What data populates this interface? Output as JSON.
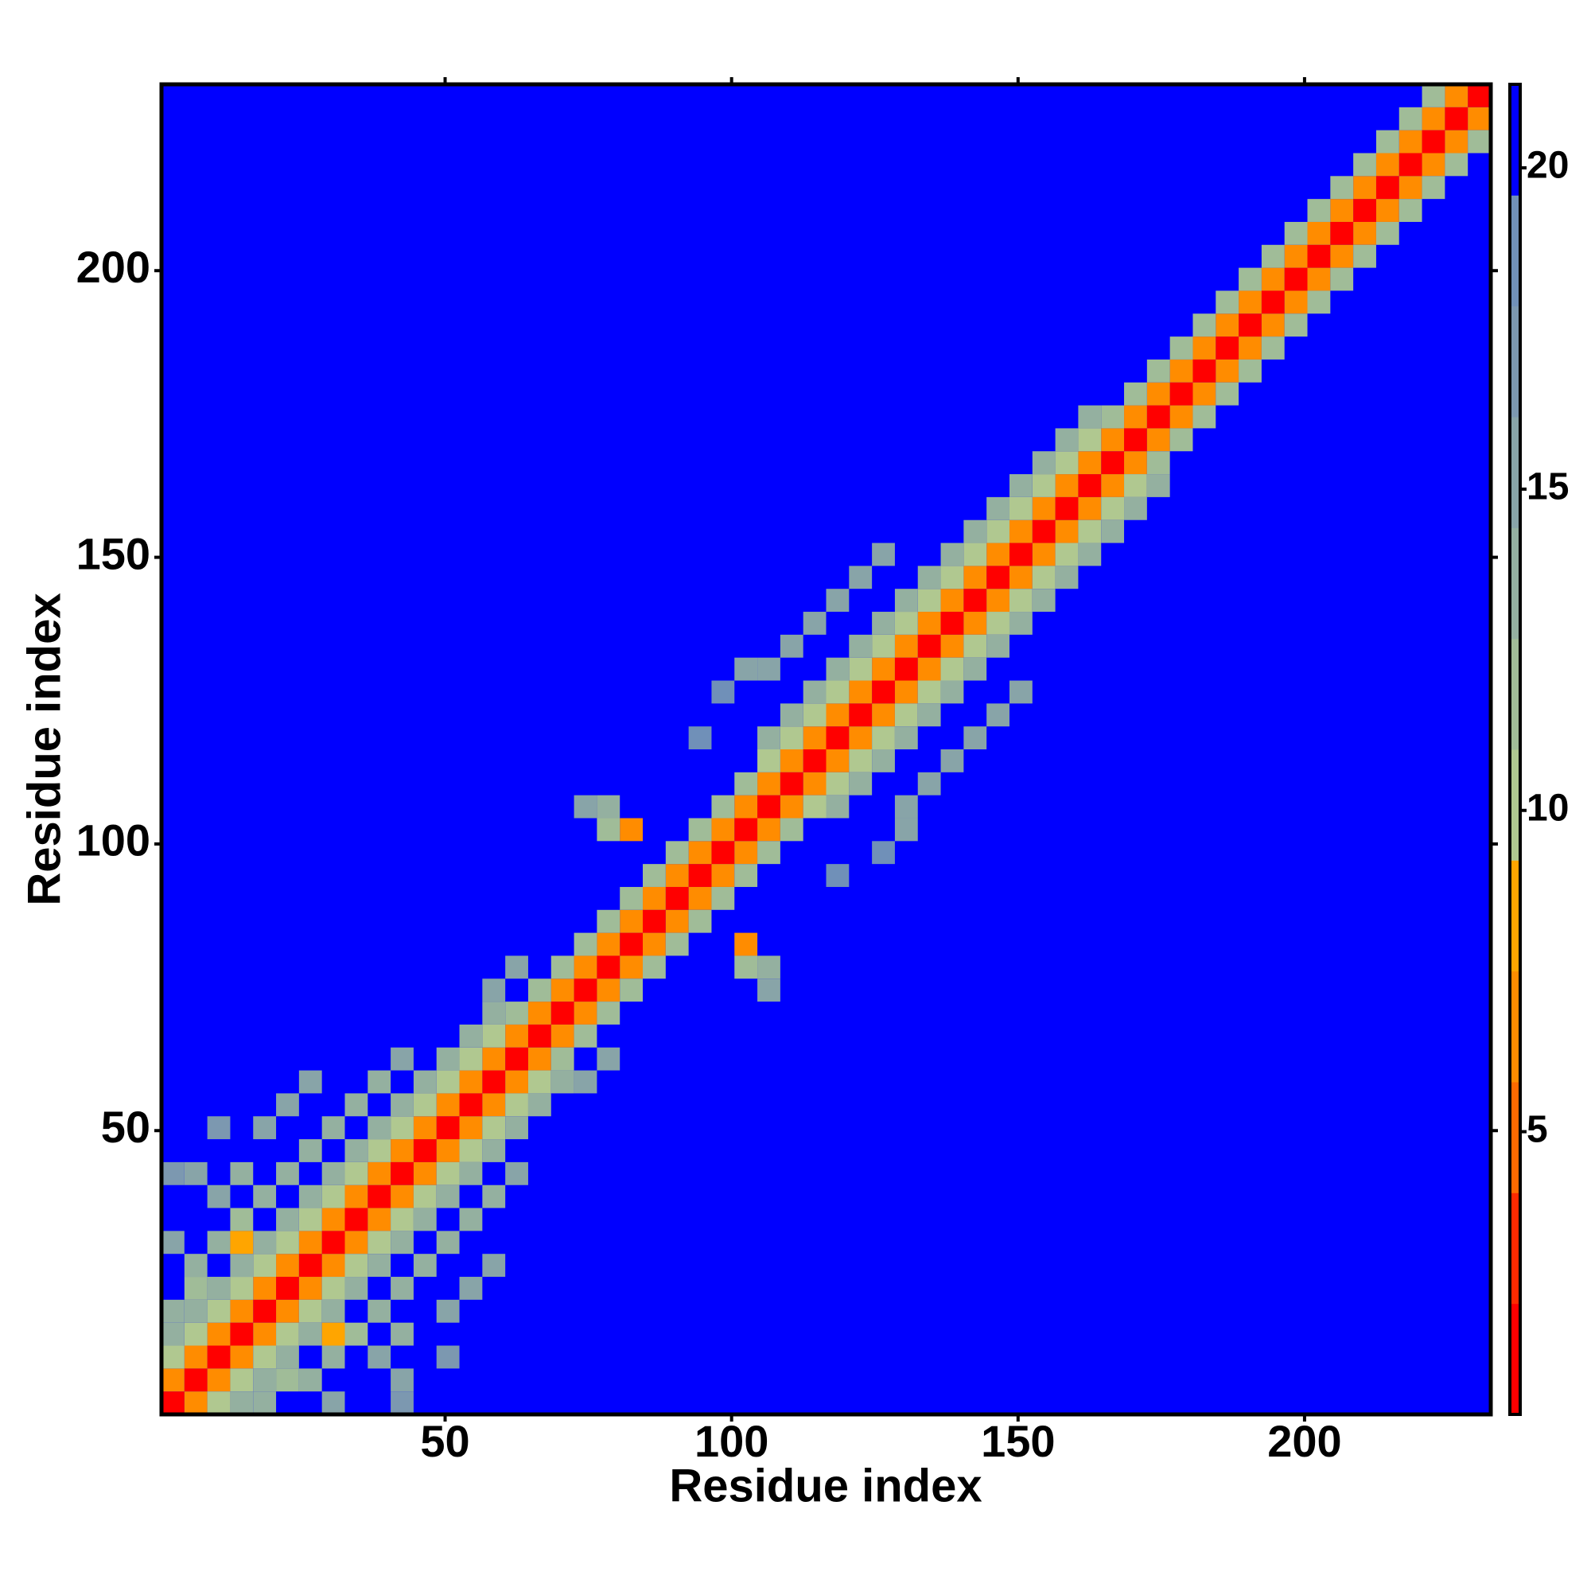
{
  "chart_data": {
    "type": "heatmap",
    "x_label": "Residue index",
    "y_label": "Residue index",
    "xlim": [
      0.5,
      232.5
    ],
    "ylim": [
      0.5,
      232.5
    ],
    "xticks": [
      50,
      100,
      150,
      200
    ],
    "yticks": [
      50,
      100,
      150,
      200
    ],
    "zlim": [
      0.6,
      21.3
    ],
    "zticks": [
      5,
      10,
      15,
      20
    ],
    "colorscale": [
      "#ff0000",
      "#ff2a00",
      "#ff6a00",
      "#ff8c00",
      "#ffa500",
      "#b0c890",
      "#a0bc98",
      "#94b0a0",
      "#88a4a8",
      "#7c98b0",
      "#7090b8",
      "#0000ff"
    ],
    "symmetric": true,
    "background": 21,
    "x": [
      2.5,
      6.5,
      10.5,
      14.5,
      18.5,
      22.5,
      26.5,
      30.5,
      34.5,
      38.5,
      42.5,
      46.5,
      50.5,
      54.5,
      58.5,
      62.5,
      66.5,
      70.5,
      74.5,
      78.5,
      82.5,
      86.5,
      90.5,
      94.5,
      98.5,
      102.5,
      106.5,
      110.5,
      114.5,
      118.5,
      122.5,
      126.5,
      130.5,
      134.5,
      138.5,
      142.5,
      146.5,
      150.5,
      154.5,
      158.5,
      162.5,
      166.5,
      170.5,
      174.5,
      178.5,
      182.5,
      186.5,
      190.5,
      194.5,
      198.5,
      202.5,
      206.5,
      210.5,
      214.5,
      218.5,
      222.5,
      226.5,
      230.5,
      2.5,
      6.5,
      10.5,
      14.5,
      18.5,
      22.5,
      26.5,
      30.5,
      34.5,
      38.5,
      42.5,
      46.5,
      50.5,
      54.5,
      58.5,
      62.5,
      66.5,
      70.5,
      74.5,
      78.5,
      82.5,
      86.5,
      90.5,
      94.5,
      98.5,
      102.5,
      106.5,
      110.5,
      114.5,
      118.5,
      122.5,
      126.5,
      130.5,
      134.5,
      138.5,
      142.5,
      146.5,
      150.5,
      154.5,
      158.5,
      162.5,
      166.5,
      170.5,
      174.5,
      178.5,
      182.5,
      186.5,
      190.5,
      194.5,
      198.5,
      202.5,
      206.5,
      210.5,
      214.5,
      218.5,
      222.5,
      226.5,
      2.5,
      6.5,
      10.5,
      14.5,
      18.5,
      22.5,
      26.5,
      30.5,
      34.5,
      38.5,
      42.5,
      46.5,
      50.5,
      54.5,
      58.5,
      62.5,
      66.5,
      70.5,
      74.5,
      78.5,
      82.5,
      86.5,
      90.5,
      94.5,
      98.5,
      102.5,
      106.5,
      110.5,
      114.5,
      118.5,
      122.5,
      126.5,
      130.5,
      134.5,
      138.5,
      142.5,
      146.5,
      150.5,
      154.5,
      158.5,
      162.5,
      166.5,
      170.5,
      174.5,
      178.5,
      182.5,
      186.5,
      190.5,
      194.5,
      198.5,
      202.5,
      206.5,
      210.5,
      214.5,
      218.5,
      222.5,
      2.5,
      6.5,
      10.5,
      14.5,
      18.5,
      22.5,
      26.5,
      30.5,
      34.5,
      38.5,
      42.5,
      46.5,
      50.5,
      54.5,
      58.5,
      106.5,
      110.5,
      114.5,
      118.5,
      122.5,
      126.5,
      130.5,
      134.5,
      138.5,
      142.5,
      146.5,
      150.5,
      154.5,
      158.5,
      162.5,
      2.5,
      6.5,
      6.5,
      10.5,
      14.5,
      18.5,
      22.5,
      26.5,
      30.5,
      34.5,
      38.5,
      10.5,
      14.5,
      2.5,
      18.5,
      22.5,
      6.5,
      26.5,
      10.5,
      2.5,
      42.5,
      62.5,
      58.5,
      82.5,
      78.5,
      78.5,
      74.5,
      102.5,
      106.5,
      110.5,
      114.5,
      118.5,
      122.5,
      126.5,
      98.5,
      94.5,
      14.5
    ],
    "y": [
      2.5,
      6.5,
      10.5,
      14.5,
      18.5,
      22.5,
      26.5,
      30.5,
      34.5,
      38.5,
      42.5,
      46.5,
      50.5,
      54.5,
      58.5,
      62.5,
      66.5,
      70.5,
      74.5,
      78.5,
      82.5,
      86.5,
      90.5,
      94.5,
      98.5,
      102.5,
      106.5,
      110.5,
      114.5,
      118.5,
      122.5,
      126.5,
      130.5,
      134.5,
      138.5,
      142.5,
      146.5,
      150.5,
      154.5,
      158.5,
      162.5,
      166.5,
      170.5,
      174.5,
      178.5,
      182.5,
      186.5,
      190.5,
      194.5,
      198.5,
      202.5,
      206.5,
      210.5,
      214.5,
      218.5,
      222.5,
      226.5,
      230.5,
      6.5,
      10.5,
      14.5,
      18.5,
      22.5,
      26.5,
      30.5,
      34.5,
      38.5,
      42.5,
      46.5,
      50.5,
      54.5,
      58.5,
      62.5,
      66.5,
      70.5,
      74.5,
      78.5,
      82.5,
      86.5,
      90.5,
      94.5,
      98.5,
      102.5,
      106.5,
      110.5,
      114.5,
      118.5,
      122.5,
      126.5,
      130.5,
      134.5,
      138.5,
      142.5,
      146.5,
      150.5,
      154.5,
      158.5,
      162.5,
      166.5,
      170.5,
      174.5,
      178.5,
      182.5,
      186.5,
      190.5,
      194.5,
      198.5,
      202.5,
      206.5,
      210.5,
      214.5,
      218.5,
      222.5,
      226.5,
      230.5,
      10.5,
      14.5,
      18.5,
      22.5,
      26.5,
      30.5,
      34.5,
      38.5,
      42.5,
      46.5,
      50.5,
      54.5,
      58.5,
      62.5,
      66.5,
      70.5,
      74.5,
      78.5,
      82.5,
      86.5,
      90.5,
      94.5,
      98.5,
      102.5,
      106.5,
      110.5,
      114.5,
      118.5,
      122.5,
      126.5,
      130.5,
      134.5,
      138.5,
      142.5,
      146.5,
      150.5,
      154.5,
      158.5,
      162.5,
      166.5,
      170.5,
      174.5,
      178.5,
      182.5,
      186.5,
      190.5,
      194.5,
      198.5,
      202.5,
      206.5,
      210.5,
      214.5,
      218.5,
      222.5,
      226.5,
      230.5,
      14.5,
      18.5,
      22.5,
      26.5,
      30.5,
      34.5,
      38.5,
      42.5,
      46.5,
      50.5,
      54.5,
      58.5,
      62.5,
      66.5,
      70.5,
      118.5,
      122.5,
      126.5,
      130.5,
      134.5,
      138.5,
      142.5,
      146.5,
      150.5,
      154.5,
      158.5,
      162.5,
      166.5,
      170.5,
      174.5,
      18.5,
      22.5,
      26.5,
      30.5,
      34.5,
      38.5,
      42.5,
      46.5,
      50.5,
      54.5,
      58.5,
      38.5,
      42.5,
      30.5,
      50.5,
      54.5,
      42.5,
      58.5,
      50.5,
      42.5,
      62.5,
      78.5,
      74.5,
      102.5,
      102.5,
      106.5,
      106.5,
      130.5,
      130.5,
      134.5,
      138.5,
      142.5,
      146.5,
      150.5,
      126.5,
      118.5,
      30.5
    ],
    "z": [
      2,
      2,
      2,
      2,
      2,
      2,
      2,
      2,
      2,
      2,
      2,
      2,
      2,
      2,
      2,
      2,
      2,
      2,
      2,
      2,
      2,
      2,
      2,
      2,
      2,
      2,
      2,
      2,
      2,
      2,
      2,
      2,
      2,
      2,
      2,
      2,
      2,
      2,
      2,
      2,
      2,
      2,
      2,
      2,
      2,
      2,
      2,
      2,
      2,
      2,
      2,
      2,
      2,
      2,
      2,
      2,
      2,
      2,
      6,
      6,
      6,
      6,
      6,
      6,
      6,
      6,
      6,
      6,
      6,
      6,
      6,
      6,
      6,
      6,
      6,
      6,
      6,
      6,
      6,
      6,
      6,
      6,
      6,
      6,
      6,
      6,
      6,
      6,
      6,
      6,
      6,
      6,
      6,
      6,
      6,
      6,
      6,
      6,
      6,
      6,
      6,
      6,
      6,
      6,
      6,
      6,
      6,
      6,
      6,
      6,
      6,
      6,
      6,
      6,
      6,
      10,
      10,
      10,
      10,
      10,
      10,
      10,
      10,
      10,
      10,
      10,
      10,
      10,
      10,
      10,
      12,
      12,
      12,
      12,
      12,
      12,
      12,
      12,
      12,
      12,
      12,
      10,
      10,
      10,
      10,
      10,
      10,
      10,
      10,
      10,
      10,
      10,
      10,
      10,
      10,
      10,
      12,
      12,
      12,
      12,
      12,
      12,
      12,
      12,
      12,
      12,
      12,
      12,
      12,
      12,
      12,
      13,
      13,
      13,
      13,
      13,
      13,
      13,
      13,
      13,
      13,
      13,
      13,
      13,
      13,
      13,
      14,
      14,
      14,
      14,
      14,
      14,
      14,
      14,
      14,
      14,
      14,
      14,
      14,
      14,
      14,
      13,
      12,
      14,
      13,
      12,
      13,
      14,
      13,
      14,
      13,
      14,
      15,
      14,
      15,
      16,
      15,
      16,
      16,
      17,
      17,
      15,
      15,
      16,
      7,
      12,
      14,
      16,
      16,
      15,
      15,
      15,
      15,
      16,
      16,
      18,
      18,
      8
    ]
  }
}
